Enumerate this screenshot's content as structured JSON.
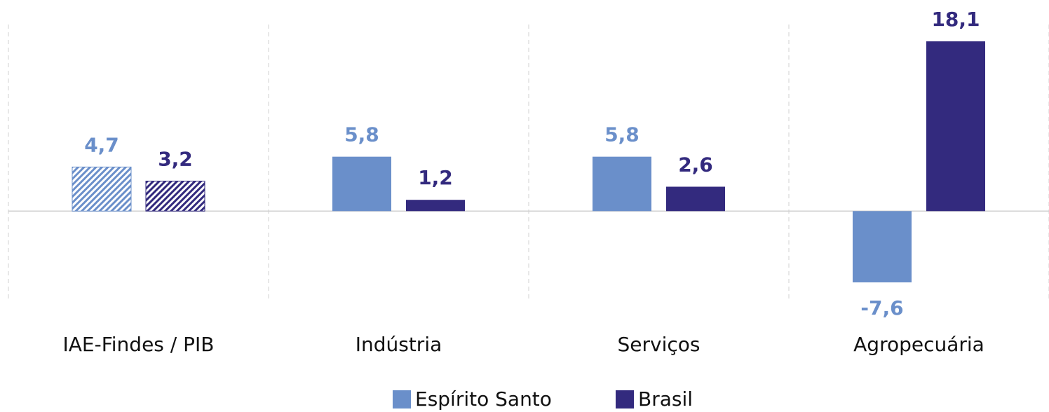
{
  "chart_data": {
    "type": "bar",
    "categories": [
      "IAE-Findes / PIB",
      "Indústria",
      "Serviços",
      "Agropecuária"
    ],
    "series": [
      {
        "name": "Espírito Santo",
        "color": "#6a8fca",
        "values": [
          4.7,
          5.8,
          5.8,
          -7.6
        ],
        "value_labels": [
          "4,7",
          "5,8",
          "5,8",
          "-7,6"
        ]
      },
      {
        "name": "Brasil",
        "color": "#332a7e",
        "values": [
          3.2,
          1.2,
          2.6,
          18.1
        ],
        "value_labels": [
          "3,2",
          "1,2",
          "2,6",
          "18,1"
        ]
      }
    ],
    "legend": "bottom"
  }
}
